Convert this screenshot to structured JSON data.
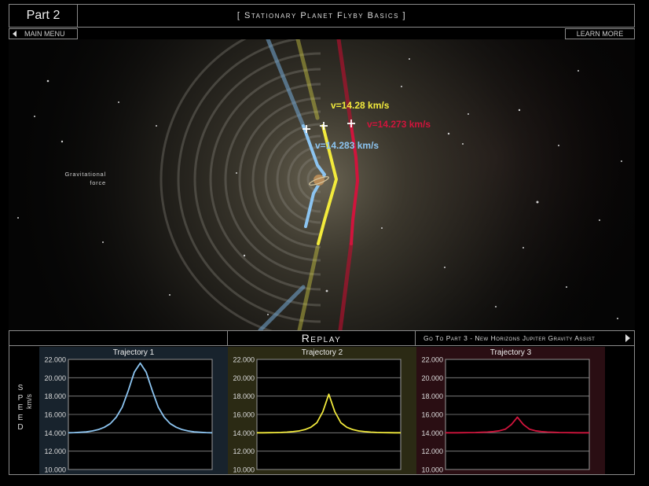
{
  "header": {
    "part_label": "Part 2",
    "title": "[ Stationary Planet Flyby Basics ]"
  },
  "nav": {
    "main_menu": "MAIN MENU",
    "learn_more": "LEARN MORE",
    "replay": "Replay",
    "go_to_part": "Go To Part 3 - New Horizons Jupiter Gravity Assist"
  },
  "sim": {
    "gravity_label_line1": "Gravitational",
    "gravity_label_line2": "force",
    "velocity_labels": [
      {
        "text": "v=14.28 km/s",
        "color": "#f2ea3c"
      },
      {
        "text": "v=14.273 km/s",
        "color": "#d0143c"
      },
      {
        "text": "v=14.283 km/s",
        "color": "#8cc4f0"
      }
    ]
  },
  "charts_axis": {
    "speed_letters": [
      "S",
      "P",
      "E",
      "E",
      "D"
    ],
    "unit": "km/s"
  },
  "chart_data": [
    {
      "type": "line",
      "title": "Trajectory 1",
      "ylim": [
        10.0,
        22.0
      ],
      "y_ticks": [
        "22.000",
        "20.000",
        "18.000",
        "16.000",
        "14.000",
        "12.000",
        "10.000"
      ],
      "series": [
        {
          "values": [
            14.0,
            14.02,
            14.05,
            14.1,
            14.2,
            14.35,
            14.6,
            15.0,
            15.7,
            16.8,
            18.6,
            20.6,
            21.6,
            20.6,
            18.6,
            16.8,
            15.7,
            15.0,
            14.6,
            14.35,
            14.2,
            14.1,
            14.05,
            14.02,
            14.0
          ],
          "color": "#8cc4f0"
        }
      ],
      "background": "#18232d"
    },
    {
      "type": "line",
      "title": "Trajectory 2",
      "ylim": [
        10.0,
        22.0
      ],
      "y_ticks": [
        "22.000",
        "20.000",
        "18.000",
        "16.000",
        "14.000",
        "12.000",
        "10.000"
      ],
      "series": [
        {
          "values": [
            14.0,
            14.0,
            14.01,
            14.02,
            14.04,
            14.07,
            14.12,
            14.2,
            14.35,
            14.6,
            15.1,
            16.3,
            18.2,
            16.3,
            15.1,
            14.6,
            14.35,
            14.2,
            14.12,
            14.07,
            14.04,
            14.02,
            14.01,
            14.0,
            14.0
          ],
          "color": "#f2ea3c"
        }
      ],
      "background": "#2b2a14"
    },
    {
      "type": "line",
      "title": "Trajectory 3",
      "ylim": [
        10.0,
        22.0
      ],
      "y_ticks": [
        "22.000",
        "20.000",
        "18.000",
        "16.000",
        "14.000",
        "12.000",
        "10.000"
      ],
      "series": [
        {
          "values": [
            14.0,
            14.0,
            14.0,
            14.01,
            14.02,
            14.03,
            14.05,
            14.08,
            14.13,
            14.22,
            14.4,
            14.9,
            15.7,
            14.9,
            14.4,
            14.22,
            14.13,
            14.08,
            14.05,
            14.03,
            14.02,
            14.01,
            14.0,
            14.0,
            14.0
          ],
          "color": "#d0143c"
        }
      ],
      "background": "#2a0e13"
    }
  ]
}
